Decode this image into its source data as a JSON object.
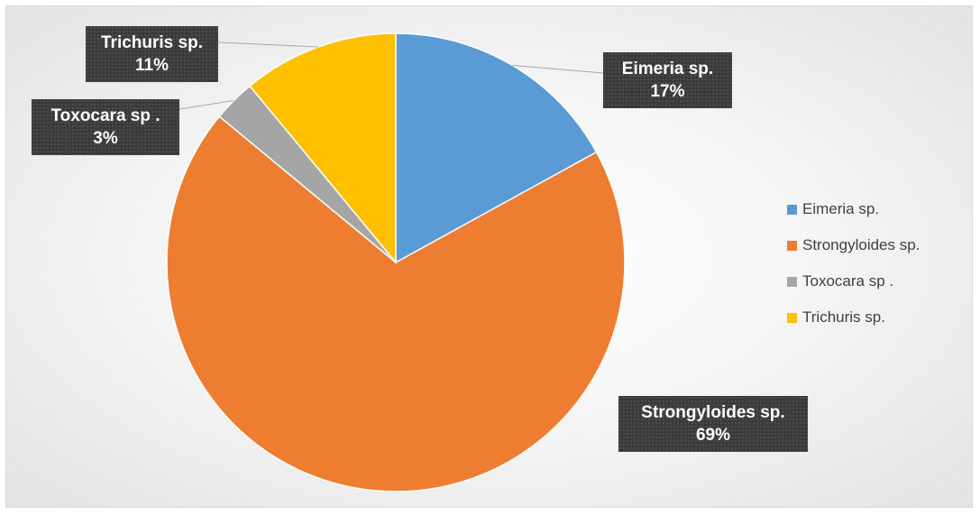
{
  "chart_data": {
    "type": "pie",
    "title": "",
    "categories": [
      "Eimeria sp.",
      "Strongyloides sp.",
      "Toxocara sp .",
      "Trichuris sp."
    ],
    "values": [
      17,
      69,
      3,
      11
    ],
    "value_labels": [
      "17%",
      "69%",
      "3%",
      "11%"
    ],
    "colors": [
      "#5b9bd5",
      "#ed7d31",
      "#a5a5a5",
      "#ffc000"
    ],
    "legend_position": "right",
    "start_angle": "12 o'clock, clockwise"
  }
}
